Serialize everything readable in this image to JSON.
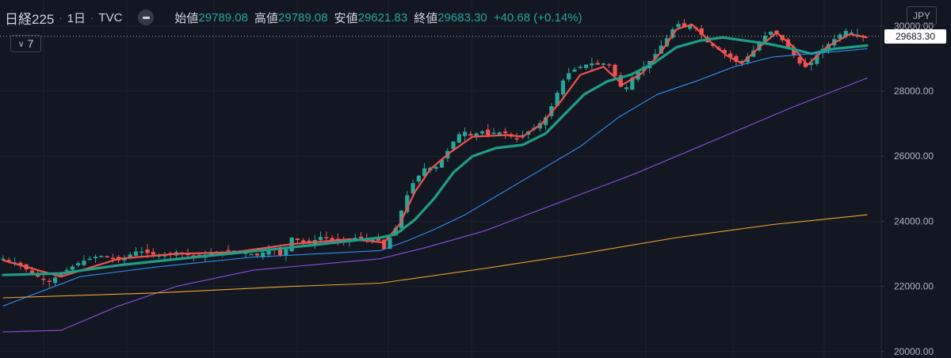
{
  "header": {
    "symbol": "日経225",
    "interval": "1日",
    "source": "TVC",
    "dot": "·",
    "open_label": "始値",
    "open_value": "29789.08",
    "high_label": "高値",
    "high_value": "29789.08",
    "low_label": "安値",
    "low_value": "29621.83",
    "close_label": "終値",
    "close_value": "29683.30",
    "change": "+40.68 (+0.14%)"
  },
  "indicators_button": {
    "count": "7",
    "chevron": "chevron-down-icon"
  },
  "currency_button": {
    "label": "JPY"
  },
  "last_price_tag": "29683.30",
  "colors": {
    "background": "#131722",
    "grid": "#1e222d",
    "up": "#26a69a",
    "down": "#ef5350",
    "ma_fast": "#f0524f",
    "ma_mid": "#1f9e88",
    "ma_blue": "#2f8ff0",
    "ma_purple": "#8b4fe0",
    "ma_orange": "#f5a32b",
    "price_line": "#b2b5be"
  },
  "chart_data": {
    "type": "candlestick",
    "title": "日経225",
    "ylim": [
      19800,
      30800
    ],
    "y_ticks": [
      "30000.00",
      "28000.00",
      "26000.00",
      "24000.00",
      "22000.00",
      "20000.00"
    ],
    "y_tick_values": [
      30000,
      28000,
      26000,
      24000,
      22000,
      20000
    ],
    "grid": true,
    "last_price": 29683.3,
    "close_path": [
      [
        0,
        22850
      ],
      [
        8,
        22700
      ],
      [
        16,
        22350
      ],
      [
        24,
        22150
      ],
      [
        30,
        22400
      ],
      [
        40,
        22750
      ],
      [
        50,
        22950
      ],
      [
        60,
        22800
      ],
      [
        70,
        23100
      ],
      [
        80,
        22950
      ],
      [
        90,
        23050
      ],
      [
        100,
        22900
      ],
      [
        110,
        23050
      ],
      [
        120,
        23100
      ],
      [
        125,
        23050
      ],
      [
        132,
        22950
      ],
      [
        140,
        23200
      ],
      [
        145,
        22900
      ],
      [
        150,
        23500
      ],
      [
        158,
        23300
      ],
      [
        166,
        23550
      ],
      [
        174,
        23350
      ],
      [
        182,
        23500
      ],
      [
        190,
        23450
      ],
      [
        196,
        23400
      ],
      [
        198,
        23150
      ],
      [
        200,
        23400
      ],
      [
        204,
        23800
      ],
      [
        208,
        24500
      ],
      [
        212,
        25100
      ],
      [
        216,
        25400
      ],
      [
        220,
        25700
      ],
      [
        224,
        25600
      ],
      [
        228,
        25900
      ],
      [
        232,
        26250
      ],
      [
        236,
        26650
      ],
      [
        240,
        26750
      ],
      [
        244,
        26600
      ],
      [
        248,
        26800
      ],
      [
        252,
        26650
      ],
      [
        256,
        26750
      ],
      [
        262,
        26700
      ],
      [
        266,
        26500
      ],
      [
        270,
        26650
      ],
      [
        274,
        26800
      ],
      [
        278,
        26950
      ],
      [
        282,
        27200
      ],
      [
        286,
        27650
      ],
      [
        290,
        28250
      ],
      [
        294,
        28550
      ],
      [
        298,
        28700
      ],
      [
        302,
        28800
      ],
      [
        306,
        28850
      ],
      [
        310,
        28800
      ],
      [
        314,
        28900
      ],
      [
        317,
        28600
      ],
      [
        320,
        28200
      ],
      [
        323,
        28000
      ],
      [
        326,
        28350
      ],
      [
        330,
        28600
      ],
      [
        334,
        28800
      ],
      [
        338,
        29050
      ],
      [
        342,
        29400
      ],
      [
        346,
        29700
      ],
      [
        350,
        30100
      ],
      [
        354,
        29950
      ],
      [
        358,
        30050
      ],
      [
        362,
        29800
      ],
      [
        366,
        29500
      ],
      [
        370,
        29350
      ],
      [
        374,
        29200
      ],
      [
        378,
        29050
      ],
      [
        382,
        28850
      ],
      [
        386,
        29000
      ],
      [
        390,
        29250
      ],
      [
        394,
        29550
      ],
      [
        398,
        29850
      ],
      [
        402,
        29750
      ],
      [
        406,
        29500
      ],
      [
        410,
        29200
      ],
      [
        414,
        28850
      ],
      [
        418,
        28700
      ],
      [
        422,
        29050
      ],
      [
        426,
        29300
      ],
      [
        430,
        29500
      ],
      [
        434,
        29700
      ],
      [
        438,
        29850
      ],
      [
        442,
        29780
      ],
      [
        446,
        29690
      ],
      [
        449,
        29683
      ]
    ],
    "series": [
      {
        "name": "MA_fast",
        "color": "#f0524f",
        "width": 2.2,
        "points": [
          [
            0,
            22800
          ],
          [
            30,
            22300
          ],
          [
            60,
            22850
          ],
          [
            90,
            23000
          ],
          [
            120,
            23050
          ],
          [
            150,
            23300
          ],
          [
            180,
            23450
          ],
          [
            198,
            23350
          ],
          [
            206,
            23900
          ],
          [
            214,
            24900
          ],
          [
            222,
            25600
          ],
          [
            232,
            26100
          ],
          [
            244,
            26600
          ],
          [
            262,
            26650
          ],
          [
            270,
            26600
          ],
          [
            280,
            27000
          ],
          [
            290,
            27700
          ],
          [
            300,
            28500
          ],
          [
            312,
            28750
          ],
          [
            322,
            28200
          ],
          [
            332,
            28550
          ],
          [
            342,
            29200
          ],
          [
            350,
            29900
          ],
          [
            358,
            30050
          ],
          [
            366,
            29600
          ],
          [
            376,
            29100
          ],
          [
            384,
            28850
          ],
          [
            394,
            29400
          ],
          [
            402,
            29800
          ],
          [
            410,
            29400
          ],
          [
            418,
            28800
          ],
          [
            428,
            29350
          ],
          [
            440,
            29750
          ],
          [
            449,
            29650
          ]
        ]
      },
      {
        "name": "MA_mid",
        "color": "#1f9e88",
        "width": 3.2,
        "points": [
          [
            0,
            22350
          ],
          [
            30,
            22400
          ],
          [
            60,
            22650
          ],
          [
            100,
            22900
          ],
          [
            150,
            23200
          ],
          [
            196,
            23500
          ],
          [
            204,
            23600
          ],
          [
            214,
            24050
          ],
          [
            224,
            24700
          ],
          [
            234,
            25500
          ],
          [
            244,
            26000
          ],
          [
            256,
            26250
          ],
          [
            270,
            26350
          ],
          [
            282,
            26700
          ],
          [
            292,
            27300
          ],
          [
            302,
            27900
          ],
          [
            314,
            28300
          ],
          [
            326,
            28500
          ],
          [
            338,
            28850
          ],
          [
            350,
            29350
          ],
          [
            362,
            29550
          ],
          [
            374,
            29650
          ],
          [
            386,
            29550
          ],
          [
            398,
            29450
          ],
          [
            410,
            29300
          ],
          [
            420,
            29150
          ],
          [
            432,
            29300
          ],
          [
            449,
            29400
          ]
        ]
      },
      {
        "name": "MA_blue",
        "color": "#2f8ff0",
        "width": 1.1,
        "points": [
          [
            0,
            21400
          ],
          [
            40,
            22300
          ],
          [
            80,
            22600
          ],
          [
            130,
            22900
          ],
          [
            196,
            23100
          ],
          [
            210,
            23400
          ],
          [
            224,
            23750
          ],
          [
            240,
            24200
          ],
          [
            260,
            24900
          ],
          [
            280,
            25600
          ],
          [
            300,
            26300
          ],
          [
            320,
            27200
          ],
          [
            340,
            27900
          ],
          [
            360,
            28300
          ],
          [
            380,
            28750
          ],
          [
            400,
            29050
          ],
          [
            420,
            29150
          ],
          [
            449,
            29300
          ]
        ]
      },
      {
        "name": "MA_purple",
        "color": "#8b4fe0",
        "width": 1.1,
        "points": [
          [
            0,
            20600
          ],
          [
            30,
            20650
          ],
          [
            60,
            21400
          ],
          [
            90,
            22000
          ],
          [
            130,
            22500
          ],
          [
            196,
            22850
          ],
          [
            220,
            23200
          ],
          [
            250,
            23700
          ],
          [
            290,
            24600
          ],
          [
            330,
            25500
          ],
          [
            370,
            26500
          ],
          [
            410,
            27500
          ],
          [
            449,
            28400
          ]
        ]
      },
      {
        "name": "MA_orange",
        "color": "#f5a32b",
        "width": 1.1,
        "points": [
          [
            0,
            21650
          ],
          [
            80,
            21800
          ],
          [
            150,
            22000
          ],
          [
            196,
            22100
          ],
          [
            250,
            22550
          ],
          [
            300,
            23000
          ],
          [
            350,
            23500
          ],
          [
            400,
            23900
          ],
          [
            449,
            24200
          ]
        ]
      }
    ]
  }
}
